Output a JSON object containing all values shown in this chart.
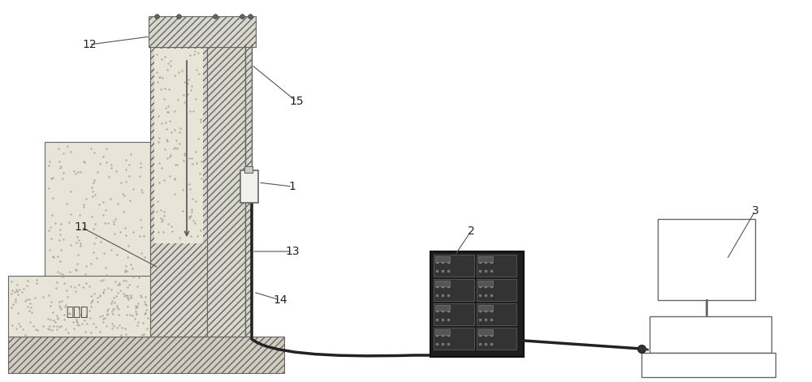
{
  "bg": "white",
  "lc": "#666666",
  "soil_fill": "#e8e4d8",
  "hatch_fill": "#d8d8cc",
  "ground_fill": "#d0ccc0",
  "labels": [
    "1",
    "2",
    "3",
    "11",
    "12",
    "13",
    "14",
    "15"
  ],
  "rock_text": "岩土体",
  "daq_dark": "#2a2a2a",
  "daq_panel": "#3a3a3a"
}
